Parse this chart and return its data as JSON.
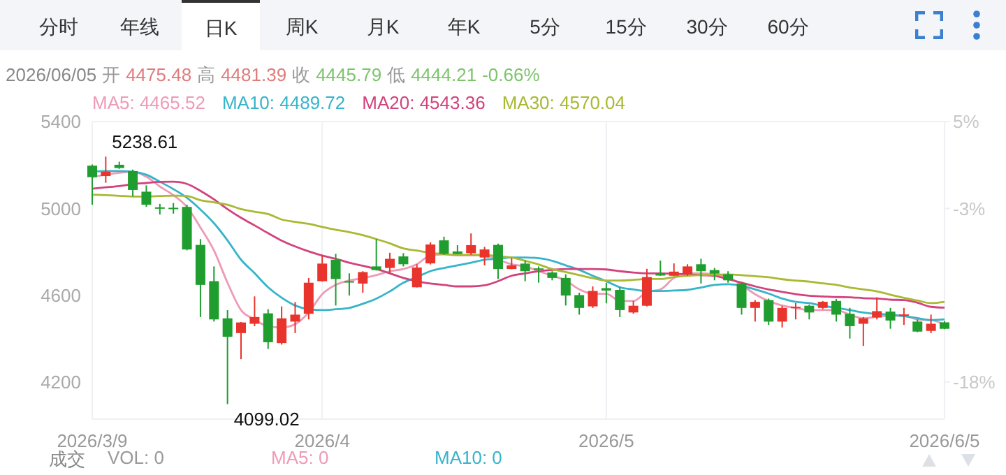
{
  "chart_data": {
    "type": "candlestick",
    "categories": [
      "2026/3/9",
      null,
      null,
      null,
      null,
      null,
      null,
      null,
      null,
      null,
      null,
      null,
      null,
      null,
      null,
      null,
      null,
      "2026/4",
      null,
      null,
      null,
      null,
      null,
      null,
      null,
      null,
      null,
      null,
      null,
      null,
      null,
      null,
      null,
      null,
      null,
      null,
      null,
      null,
      "2026/5",
      null,
      null,
      null,
      null,
      null,
      null,
      null,
      null,
      null,
      null,
      null,
      null,
      null,
      null,
      null,
      null,
      null,
      null,
      null,
      null,
      null,
      null,
      null,
      null,
      "2026/6/5"
    ],
    "series": [
      {
        "type": "line",
        "name": "MA5: 4465.52",
        "color": "#ee9bb5",
        "values": [
          5144,
          5155,
          5164,
          5169,
          5146,
          5101,
          5061,
          5007,
          4912,
          4806,
          4658,
          4532,
          4489,
          4457,
          4452,
          4467,
          4521,
          4605,
          4648,
          4668,
          4679,
          4693,
          4711,
          4721,
          4743,
          4784,
          4789,
          4784,
          4784,
          4784,
          4764,
          4743,
          4733,
          4711,
          4690,
          4668,
          4627,
          4607,
          4607,
          4574,
          4574,
          4615,
          4627,
          4680,
          4701,
          4701,
          4697,
          4684,
          4648,
          4605,
          4574,
          4553,
          4542,
          4532,
          4532,
          4532,
          4511,
          4494,
          4501,
          4506,
          4506,
          4489,
          4486,
          4465.52
        ]
      },
      {
        "type": "line",
        "name": "MA10: 4489.72",
        "color": "#36b4c9",
        "values": [
          5169,
          5172,
          5172,
          5169,
          5155,
          5123,
          5089,
          5049,
          4995,
          4932,
          4853,
          4764,
          4702,
          4637,
          4589,
          4553,
          4536,
          4532,
          4536,
          4542,
          4561,
          4585,
          4618,
          4658,
          4684,
          4711,
          4726,
          4738,
          4750,
          4764,
          4768,
          4774,
          4774,
          4771,
          4759,
          4738,
          4717,
          4690,
          4665,
          4637,
          4627,
          4620,
          4620,
          4622,
          4625,
          4636,
          4648,
          4651,
          4644,
          4627,
          4608,
          4585,
          4570,
          4564,
          4552,
          4542,
          4532,
          4521,
          4514,
          4511,
          4504,
          4495,
          4486,
          4489.72
        ]
      },
      {
        "type": "line",
        "name": "MA20: 4543.36",
        "color": "#d2437d",
        "values": [
          5091,
          5097,
          5103,
          5112,
          5117,
          5122,
          5123,
          5113,
          5081,
          5042,
          4997,
          4957,
          4922,
          4886,
          4852,
          4825,
          4802,
          4783,
          4768,
          4750,
          4736,
          4721,
          4701,
          4680,
          4665,
          4654,
          4648,
          4641,
          4641,
          4646,
          4665,
          4690,
          4701,
          4711,
          4717,
          4721,
          4721,
          4721,
          4719,
          4711,
          4705,
          4701,
          4701,
          4699,
          4697,
          4693,
          4690,
          4674,
          4658,
          4641,
          4627,
          4616,
          4605,
          4598,
          4595,
          4592,
          4591,
          4587,
          4585,
          4580,
          4578,
          4566,
          4547,
          4543.36
        ]
      },
      {
        "type": "line",
        "name": "MA30: 4570.04",
        "color": "#a9b932",
        "values": [
          5063,
          5061,
          5058,
          5055,
          5055,
          5057,
          5059,
          5057,
          5038,
          5028,
          5017,
          4997,
          4985,
          4974,
          4949,
          4938,
          4929,
          4915,
          4902,
          4891,
          4877,
          4859,
          4839,
          4816,
          4806,
          4796,
          4790,
          4786,
          4786,
          4786,
          4780,
          4774,
          4759,
          4742,
          4721,
          4707,
          4693,
          4679,
          4668,
          4668,
          4671,
          4675,
          4675,
          4684,
          4690,
          4693,
          4695,
          4696,
          4693,
          4688,
          4683,
          4674,
          4668,
          4663,
          4655,
          4648,
          4636,
          4627,
          4618,
          4603,
          4588,
          4576,
          4564,
          4570.04
        ]
      },
      {
        "type": "candlestick",
        "ohlc": [
          [
            5197,
            5202,
            5017,
            5144
          ],
          [
            5149,
            5238.61,
            5118,
            5169
          ],
          [
            5201,
            5215,
            5182,
            5186
          ],
          [
            5172,
            5179,
            5055,
            5085
          ],
          [
            5077,
            5106,
            5007,
            5017
          ],
          [
            5005,
            5021,
            4972,
            5001
          ],
          [
            5003,
            5025,
            4976,
            5000
          ],
          [
            5007,
            5017,
            4807,
            4811
          ],
          [
            4832,
            4859,
            4500,
            4648
          ],
          [
            4665,
            4733,
            4479,
            4489
          ],
          [
            4494,
            4532,
            4099.02,
            4409
          ],
          [
            4426,
            4477,
            4306,
            4475
          ],
          [
            4469,
            4595,
            4458,
            4500
          ],
          [
            4517,
            4536,
            4353,
            4384
          ],
          [
            4380,
            4549,
            4373,
            4494
          ],
          [
            4479,
            4569,
            4426,
            4511
          ],
          [
            4515,
            4680,
            4489,
            4658
          ],
          [
            4665,
            4785,
            4663,
            4746
          ],
          [
            4764,
            4791,
            4553,
            4675
          ],
          [
            4665,
            4701,
            4599,
            4660
          ],
          [
            4654,
            4711,
            4612,
            4707
          ],
          [
            4733,
            4859,
            4714,
            4716
          ],
          [
            4726,
            4796,
            4701,
            4768
          ],
          [
            4779,
            4794,
            4733,
            4743
          ],
          [
            4637,
            4743,
            4636,
            4728
          ],
          [
            4747,
            4844,
            4742,
            4834
          ],
          [
            4853,
            4870,
            4786,
            4791
          ],
          [
            4802,
            4831,
            4789,
            4790
          ],
          [
            4794,
            4885,
            4786,
            4831
          ],
          [
            4774,
            4823,
            4738,
            4811
          ],
          [
            4832,
            4838,
            4675,
            4721
          ],
          [
            4721,
            4772,
            4720,
            4738
          ],
          [
            4746,
            4760,
            4665,
            4711
          ],
          [
            4724,
            4733,
            4658,
            4721
          ],
          [
            4705,
            4711,
            4669,
            4680
          ],
          [
            4680,
            4697,
            4553,
            4599
          ],
          [
            4601,
            4612,
            4511,
            4542
          ],
          [
            4549,
            4641,
            4542,
            4620
          ],
          [
            4633,
            4658,
            4563,
            4622
          ],
          [
            4625,
            4637,
            4500,
            4532
          ],
          [
            4521,
            4574,
            4515,
            4552
          ],
          [
            4552,
            4722,
            4549,
            4684
          ],
          [
            4701,
            4760,
            4690,
            4691
          ],
          [
            4690,
            4747,
            4689,
            4709
          ],
          [
            4697,
            4743,
            4690,
            4733
          ],
          [
            4743,
            4768,
            4654,
            4711
          ],
          [
            4716,
            4726,
            4669,
            4700
          ],
          [
            4697,
            4711,
            4658,
            4669
          ],
          [
            4654,
            4658,
            4511,
            4542
          ],
          [
            4542,
            4578,
            4479,
            4570
          ],
          [
            4578,
            4585,
            4464,
            4479
          ],
          [
            4479,
            4552,
            4452,
            4542
          ],
          [
            4542,
            4564,
            4489,
            4547
          ],
          [
            4552,
            4557,
            4489,
            4521
          ],
          [
            4542,
            4574,
            4536,
            4570
          ],
          [
            4574,
            4583,
            4479,
            4511
          ],
          [
            4515,
            4542,
            4401,
            4458
          ],
          [
            4469,
            4500,
            4367,
            4494
          ],
          [
            4498,
            4591,
            4489,
            4527
          ],
          [
            4525,
            4542,
            4446,
            4484
          ],
          [
            4511,
            4542,
            4464,
            4512
          ],
          [
            4479,
            4489,
            4430,
            4433
          ],
          [
            4436,
            4511,
            4426,
            4469
          ],
          [
            4475.48,
            4481.39,
            4444.21,
            4445.79
          ]
        ],
        "colors": [
          "#1f9d2e",
          "#e8342c",
          "#1f9d2e",
          "#1f9d2e",
          "#1f9d2e",
          "#1f9d2e",
          "#1f9d2e",
          "#1f9d2e",
          "#1f9d2e",
          "#1f9d2e",
          "#1f9d2e",
          "#e8342c",
          "#e8342c",
          "#1f9d2e",
          "#e8342c",
          "#e8342c",
          "#e8342c",
          "#e8342c",
          "#1f9d2e",
          "#1f9d2e",
          "#e8342c",
          "#1f9d2e",
          "#e8342c",
          "#1f9d2e",
          "#e8342c",
          "#e8342c",
          "#1f9d2e",
          "#1f9d2e",
          "#e8342c",
          "#e8342c",
          "#1f9d2e",
          "#e8342c",
          "#1f9d2e",
          "#1f9d2e",
          "#1f9d2e",
          "#1f9d2e",
          "#1f9d2e",
          "#e8342c",
          "#1f9d2e",
          "#1f9d2e",
          "#e8342c",
          "#e8342c",
          "#1f9d2e",
          "#e8342c",
          "#e8342c",
          "#1f9d2e",
          "#1f9d2e",
          "#1f9d2e",
          "#1f9d2e",
          "#e8342c",
          "#1f9d2e",
          "#e8342c",
          "#e8342c",
          "#1f9d2e",
          "#e8342c",
          "#1f9d2e",
          "#1f9d2e",
          "#e8342c",
          "#e8342c",
          "#1f9d2e",
          "#e8342c",
          "#1f9d2e",
          "#e8342c",
          "#1f9d2e"
        ]
      }
    ],
    "ylim": [
      4030,
      5400
    ],
    "yticks": [
      4200,
      4600,
      5000,
      5400
    ],
    "y2lim": [
      -21.64,
      5.0
    ],
    "y2ticks": [
      {
        "value": -18.33,
        "label": "-18%"
      },
      {
        "value": -2.78,
        "label": "-3%"
      },
      {
        "value": 5.0,
        "label": "5%"
      }
    ],
    "grid": true,
    "legend": "top left",
    "annotations": [
      "分时",
      "年线",
      "日K",
      "周K",
      "月K",
      "年K",
      "5分",
      "15分",
      "30分",
      "60分",
      "2026/06/05",
      "开",
      "4475.48",
      "高",
      "4481.39",
      "收",
      "4445.79",
      "低",
      "4444.21",
      "-0.66%",
      "成交",
      "VOL: 0",
      "MA5: 0",
      "MA10: 0",
      "5238.61",
      "4099.02"
    ]
  }
}
